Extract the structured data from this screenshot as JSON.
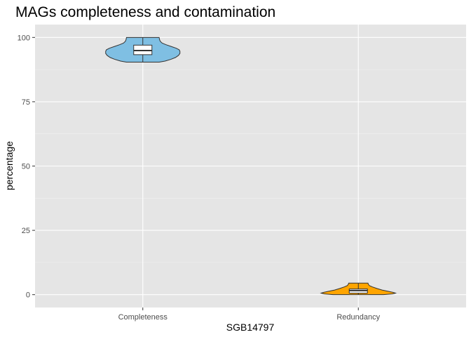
{
  "chart_data": {
    "type": "violin",
    "title": "MAGs completeness and contamination",
    "xlabel": "SGB14797",
    "ylabel": "percentage",
    "categories": [
      "Completeness",
      "Redundancy"
    ],
    "ylim": [
      -5,
      105
    ],
    "yticks": [
      0,
      25,
      50,
      75,
      100
    ],
    "grid": true,
    "series": [
      {
        "category": "Completeness",
        "color": "#7fbfe3",
        "y_min": 90.4,
        "y_max": 100,
        "box": {
          "q1": 93.3,
          "median": 94.9,
          "q3": 97.0
        },
        "density": [
          [
            90.4,
            0.44
          ],
          [
            90.8,
            0.6
          ],
          [
            91.5,
            0.76
          ],
          [
            92.2,
            0.88
          ],
          [
            93.0,
            0.96
          ],
          [
            93.8,
            1.0
          ],
          [
            94.6,
            1.0
          ],
          [
            95.2,
            0.98
          ],
          [
            95.8,
            0.9
          ],
          [
            96.5,
            0.76
          ],
          [
            97.2,
            0.62
          ],
          [
            97.8,
            0.52
          ],
          [
            98.5,
            0.47
          ],
          [
            99.2,
            0.45
          ],
          [
            100.0,
            0.44
          ]
        ]
      },
      {
        "category": "Redundancy",
        "color": "#ffa500",
        "y_min": 0,
        "y_max": 4.5,
        "box": {
          "q1": 0.6,
          "median": 1.6,
          "q3": 2.2
        },
        "density": [
          [
            0.0,
            0.68
          ],
          [
            0.3,
            0.92
          ],
          [
            0.6,
            1.0
          ],
          [
            0.9,
            0.93
          ],
          [
            1.3,
            0.8
          ],
          [
            1.8,
            0.64
          ],
          [
            2.4,
            0.5
          ],
          [
            3.0,
            0.38
          ],
          [
            3.5,
            0.3
          ],
          [
            4.0,
            0.27
          ],
          [
            4.5,
            0.26
          ]
        ]
      }
    ]
  }
}
